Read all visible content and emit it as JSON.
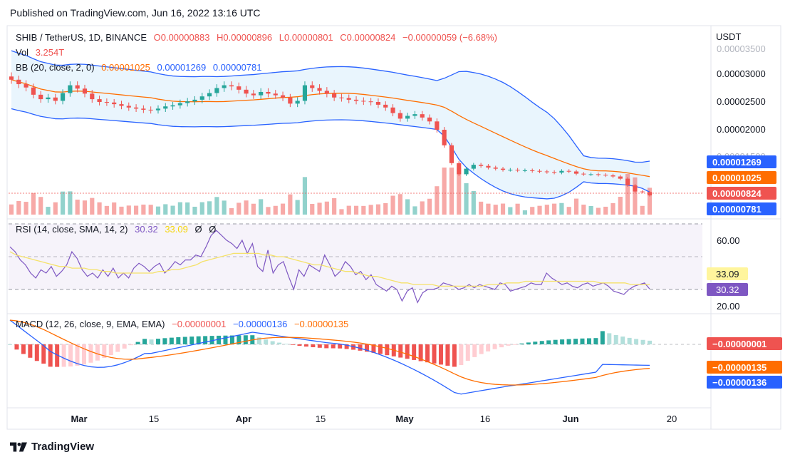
{
  "header": {
    "published": "Published on TradingView.com, Jun 16, 2022 13:16 UTC"
  },
  "footer": {
    "brand": "TradingView"
  },
  "legend": {
    "main": {
      "symbol": "SHIB / TetherUS, 1D, BINANCE",
      "open": "O0.00000883",
      "high": "H0.00000896",
      "low": "L0.00000801",
      "close": "C0.00000824",
      "change": "−0.00000059 (−6.68%)"
    },
    "vol": {
      "label": "Vol",
      "value": "3.254T"
    },
    "bb": {
      "label": "BB (20, close, 2, 0)",
      "basis": "0.00001025",
      "upper": "0.00001269",
      "lower": "0.00000781"
    },
    "rsi": {
      "label": "RSI (14, close, SMA, 14, 2)",
      "rsi": "30.32",
      "sma": "33.09",
      "extra1": "Ø",
      "extra2": "Ø"
    },
    "macd": {
      "label": "MACD (12, 26, close, 9, EMA, EMA)",
      "hist": "−0.00000001",
      "macd": "−0.00000136",
      "signal": "−0.00000135"
    }
  },
  "axis": {
    "currency": "USDT",
    "price_ticks": [
      "0.00003500",
      "0.00003000",
      "0.00002500",
      "0.00002000",
      "0.00001500"
    ],
    "rsi_ticks": [
      "60.00",
      "20.00"
    ],
    "time_labels": [
      "Mar",
      "15",
      "Apr",
      "15",
      "May",
      "16",
      "Jun",
      "20"
    ]
  },
  "badges": {
    "bb_upper": "0.00001269",
    "bb_basis": "0.00001025",
    "last_price": "0.00000824",
    "bb_lower": "0.00000781",
    "rsi_sma": "33.09",
    "rsi": "30.32",
    "macd_hist": "−0.00000001",
    "macd_signal": "−0.00000135",
    "macd_line": "−0.00000136"
  },
  "colors": {
    "up": "#26a69a",
    "down": "#ef5350",
    "bb_basis": "#ff6d00",
    "bb_band": "#2962ff",
    "bb_fill": "#e3f2fd",
    "rsi": "#7e57c2",
    "rsi_sma": "#f5e26a",
    "macd_line": "#2962ff",
    "macd_signal": "#ff6d00"
  },
  "chart_data": [
    {
      "type": "candlestick",
      "title": "SHIB / TetherUS, 1D, BINANCE",
      "x_range": [
        "2022-02-18",
        "2022-06-16"
      ],
      "ylabel": "USDT",
      "ylim": [
        1.15e-05,
        3.55e-05
      ],
      "last_close": 8.24e-06,
      "closes": [
        2.9e-05,
        2.82e-05,
        2.76e-05,
        2.63e-05,
        2.55e-05,
        2.58e-05,
        2.52e-05,
        2.66e-05,
        2.8e-05,
        2.74e-05,
        2.65e-05,
        2.55e-05,
        2.5e-05,
        2.49e-05,
        2.46e-05,
        2.43e-05,
        2.4e-05,
        2.38e-05,
        2.36e-05,
        2.35e-05,
        2.38e-05,
        2.42e-05,
        2.44e-05,
        2.48e-05,
        2.51e-05,
        2.54e-05,
        2.6e-05,
        2.66e-05,
        2.75e-05,
        2.8e-05,
        2.78e-05,
        2.72e-05,
        2.65e-05,
        2.62e-05,
        2.68e-05,
        2.65e-05,
        2.62e-05,
        2.58e-05,
        2.47e-05,
        2.52e-05,
        2.8e-05,
        2.75e-05,
        2.7e-05,
        2.65e-05,
        2.58e-05,
        2.57e-05,
        2.54e-05,
        2.52e-05,
        2.51e-05,
        2.5e-05,
        2.45e-05,
        2.4e-05,
        2.3e-05,
        2.2e-05,
        2.25e-05,
        2.28e-05,
        2.22e-05,
        2.15e-05,
        2e-05,
        1.72e-05,
        1.4e-05,
        1.2e-05,
        1.3e-05,
        1.37e-05,
        1.35e-05,
        1.32e-05,
        1.3e-05,
        1.28e-05,
        1.28e-05,
        1.27e-05,
        1.27e-05,
        1.26e-05,
        1.25e-05,
        1.24e-05,
        1.23e-05,
        1.26e-05,
        1.25e-05,
        1.21e-05,
        1.2e-05,
        1.2e-05,
        1.19e-05,
        1.18e-05,
        1.16e-05,
        1.12e-05,
        1e-05,
        8.9e-06,
        8.8e-06,
        8.2e-06
      ],
      "volume_shown": "3.254T"
    },
    {
      "type": "line",
      "title": "RSI (14, close, SMA, 14, 2)",
      "ylim": [
        17,
        76
      ],
      "series": [
        {
          "name": "RSI",
          "values": [
            56,
            53,
            48,
            45,
            40,
            37,
            42,
            40,
            44,
            38,
            41,
            45,
            53,
            49,
            42,
            38,
            40,
            37,
            42,
            38,
            43,
            37,
            40,
            37,
            43,
            46,
            44,
            41,
            44,
            46,
            40,
            43,
            47,
            45,
            48,
            48,
            51,
            50,
            56,
            63,
            66,
            63,
            60,
            58,
            55,
            60,
            52,
            58,
            44,
            41,
            54,
            40,
            45,
            47,
            38,
            30,
            42,
            38,
            45,
            43,
            41,
            51,
            45,
            38,
            41,
            47,
            44,
            39,
            41,
            36,
            39,
            33,
            31,
            29,
            32,
            30,
            23,
            29,
            31,
            22,
            28,
            30,
            30,
            31,
            34,
            33,
            32,
            30,
            31,
            33,
            31,
            33,
            32,
            31,
            30,
            34,
            33,
            29,
            30,
            31,
            32,
            34,
            33,
            33,
            40,
            37,
            35,
            33,
            34,
            32,
            31,
            33,
            34,
            32,
            33,
            34,
            32,
            29,
            28,
            27,
            30,
            32,
            33,
            34,
            30.32
          ]
        },
        {
          "name": "SMA",
          "values": [
            53,
            51,
            50,
            49,
            48,
            47,
            46,
            45,
            44,
            44,
            43,
            43,
            43,
            42,
            42,
            41,
            41,
            40,
            40,
            40,
            40,
            40,
            40,
            40,
            41,
            41,
            42,
            42,
            43,
            44,
            45,
            47,
            48,
            49,
            50,
            51,
            52,
            52,
            52,
            52,
            52,
            51,
            51,
            50,
            50,
            49,
            48,
            47,
            46,
            45,
            45,
            44,
            43,
            42,
            41,
            41,
            40,
            39,
            38,
            38,
            37,
            36,
            35,
            34,
            34,
            33,
            33,
            33,
            33,
            32,
            32,
            32,
            32,
            32,
            32,
            32,
            32,
            33,
            33,
            33,
            34,
            34,
            34,
            35,
            35,
            35,
            35,
            35,
            35,
            35,
            35,
            35,
            35,
            35,
            35,
            34,
            34,
            34,
            34,
            34,
            33,
            33,
            33,
            33.09
          ]
        }
      ]
    },
    {
      "type": "bar+line",
      "title": "MACD (12, 26, close, 9, EMA, EMA)",
      "series": [
        {
          "name": "MACD",
          "last": -1.36e-06
        },
        {
          "name": "Signal",
          "last": -1.35e-06
        },
        {
          "name": "Histogram",
          "last": -1e-08
        }
      ]
    }
  ]
}
